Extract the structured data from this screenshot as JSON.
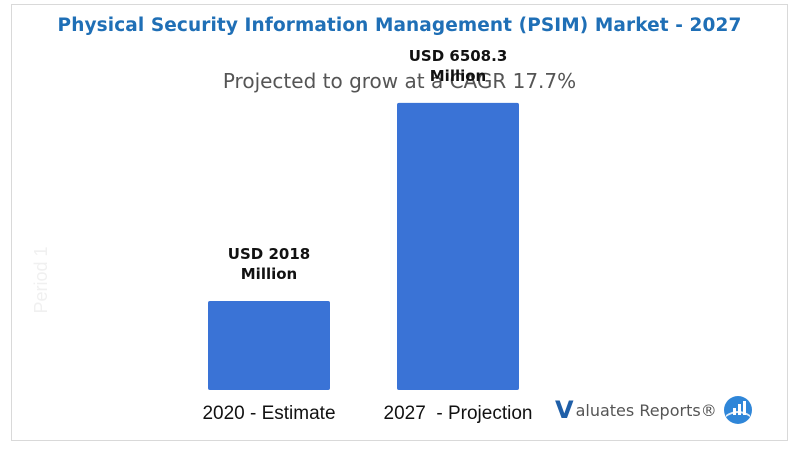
{
  "title": "Physical Security Information Management (PSIM) Market - 2027",
  "subtitle": "Projected to grow at a CAGR 17.7%",
  "logo": {
    "v_letter": "V",
    "text": "aluates Reports®",
    "icon": "chart-globe-icon"
  },
  "colors": {
    "title": "#1f6fb6",
    "bar": "#3a73d6",
    "logo": "#1f5fa8"
  },
  "chart_data": {
    "type": "bar",
    "categories": [
      "2020 - Estimate",
      "2027  - Projection"
    ],
    "values": [
      2018,
      6508.3
    ],
    "data_labels": [
      [
        "USD 2018",
        "Million"
      ],
      [
        "USD 6508.3",
        "Million"
      ]
    ],
    "ylabel": "Period 1",
    "unit": "USD Million",
    "ylim": [
      0,
      8000
    ],
    "grid": false,
    "legend": "none"
  }
}
